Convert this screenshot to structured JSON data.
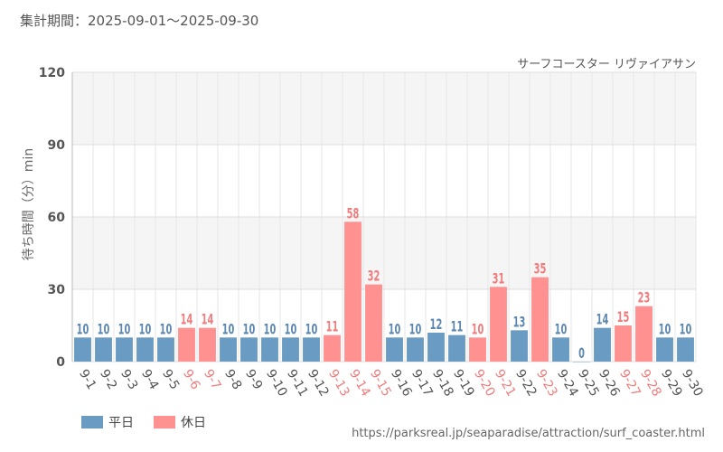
{
  "period_label": "集計期間：2025-09-01～2025-09-30",
  "source_url": "https://parksreal.jp/seaparadise/attraction/surf_coaster.html",
  "legend": {
    "weekday": "平日",
    "holiday": "休日"
  },
  "colors": {
    "weekday_bar": "#6a9bc3",
    "holiday_bar": "#ff9191",
    "weekday_label": "#5b87b0",
    "holiday_label": "#f07c7c",
    "band": "#f5f5f5"
  },
  "chart_data": {
    "type": "bar",
    "title": "サーフコースター リヴァイアサン",
    "xlabel": "",
    "ylabel": "待ち時間（分）min",
    "ylim": [
      0,
      120
    ],
    "yticks": [
      "0",
      "30",
      "60",
      "90",
      "120"
    ],
    "categories": [
      "9-1",
      "9-2",
      "9-3",
      "9-4",
      "9-5",
      "9-6",
      "9-7",
      "9-8",
      "9-9",
      "9-10",
      "9-11",
      "9-12",
      "9-13",
      "9-14",
      "9-15",
      "9-16",
      "9-17",
      "9-18",
      "9-19",
      "9-20",
      "9-21",
      "9-22",
      "9-23",
      "9-24",
      "9-25",
      "9-26",
      "9-27",
      "9-28",
      "9-29",
      "9-30"
    ],
    "values": [
      10,
      10,
      10,
      10,
      10,
      14,
      14,
      10,
      10,
      10,
      10,
      10,
      11,
      58,
      32,
      10,
      10,
      12,
      11,
      10,
      31,
      13,
      35,
      10,
      0,
      14,
      15,
      23,
      10,
      10
    ],
    "day_type": [
      "weekday",
      "weekday",
      "weekday",
      "weekday",
      "weekday",
      "holiday",
      "holiday",
      "weekday",
      "weekday",
      "weekday",
      "weekday",
      "weekday",
      "holiday",
      "holiday",
      "holiday",
      "weekday",
      "weekday",
      "weekday",
      "weekday",
      "holiday",
      "holiday",
      "weekday",
      "holiday",
      "weekday",
      "weekday",
      "weekday",
      "holiday",
      "holiday",
      "weekday",
      "weekday"
    ]
  }
}
